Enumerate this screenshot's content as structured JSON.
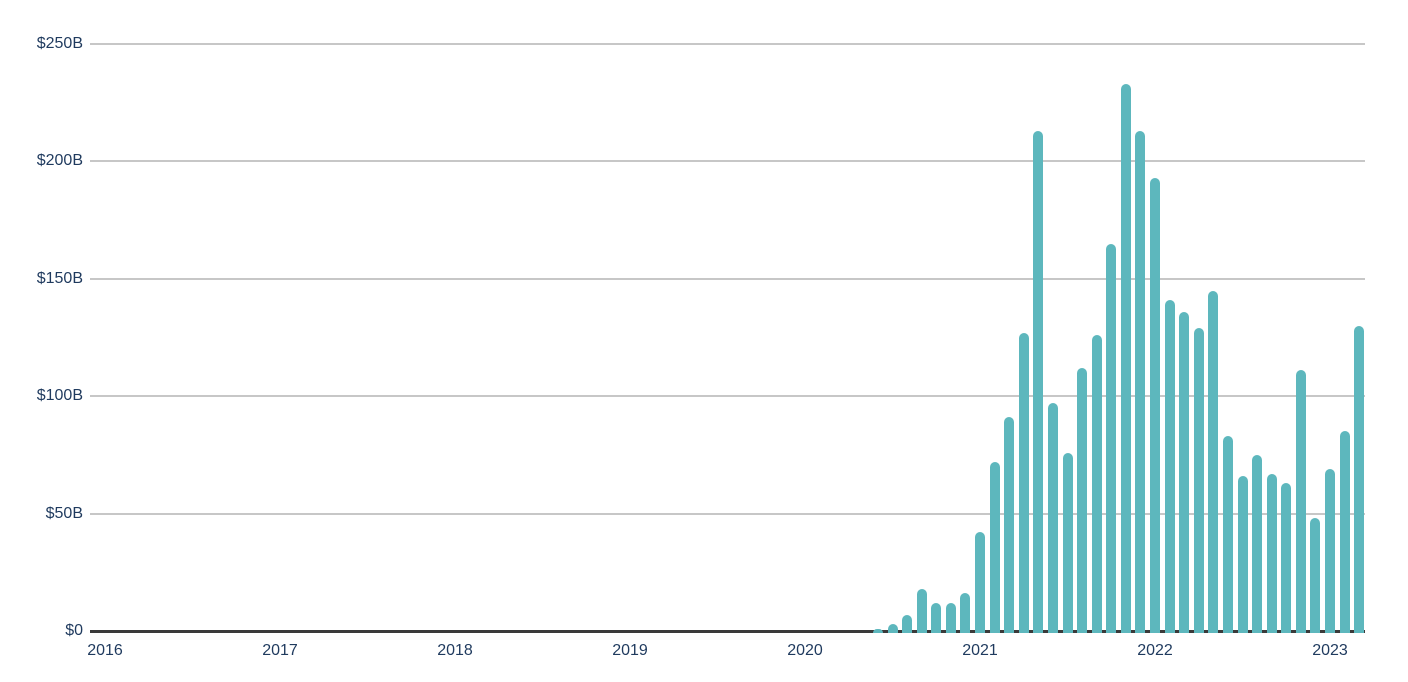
{
  "chart_data": {
    "type": "bar",
    "title": "",
    "xlabel": "",
    "ylabel": "",
    "unit": "USD billions per month",
    "ylim": [
      0,
      250
    ],
    "grid": "horizontal",
    "legend": "none",
    "x": [
      "2020-06",
      "2020-07",
      "2020-08",
      "2020-09",
      "2020-10",
      "2020-11",
      "2020-12",
      "2021-01",
      "2021-02",
      "2021-03",
      "2021-04",
      "2021-05",
      "2021-06",
      "2021-07",
      "2021-08",
      "2021-09",
      "2021-10",
      "2021-11",
      "2021-12",
      "2022-01",
      "2022-02",
      "2022-03",
      "2022-04",
      "2022-05",
      "2022-06",
      "2022-07",
      "2022-08",
      "2022-09",
      "2022-10",
      "2022-11",
      "2022-12",
      "2023-01",
      "2023-02",
      "2023-03"
    ],
    "values": [
      1,
      3,
      7,
      18,
      12,
      12,
      16,
      42,
      72,
      91,
      127,
      213,
      97,
      76,
      112,
      126,
      165,
      233,
      213,
      193,
      141,
      136,
      129,
      145,
      83,
      66,
      75,
      67,
      63,
      111,
      48,
      69,
      85,
      130
    ],
    "y_ticks": [
      {
        "value": 0,
        "label": "$0"
      },
      {
        "value": 50,
        "label": "$50B"
      },
      {
        "value": 100,
        "label": "$100B"
      },
      {
        "value": 150,
        "label": "$150B"
      },
      {
        "value": 200,
        "label": "$200B"
      },
      {
        "value": 250,
        "label": "$250B"
      }
    ],
    "x_ticks": [
      {
        "year": 2016,
        "label": "2016"
      },
      {
        "year": 2017,
        "label": "2017"
      },
      {
        "year": 2018,
        "label": "2018"
      },
      {
        "year": 2019,
        "label": "2019"
      },
      {
        "year": 2020,
        "label": "2020"
      },
      {
        "year": 2021,
        "label": "2021"
      },
      {
        "year": 2022,
        "label": "2022"
      },
      {
        "year": 2023,
        "label": "2023"
      }
    ]
  },
  "style": {
    "bar_color": "#5db7bd",
    "grid_color": "#c7c7c7",
    "axis_color": "#3a3a3a",
    "label_color": "#1f3a5e",
    "background": "#ffffff"
  }
}
